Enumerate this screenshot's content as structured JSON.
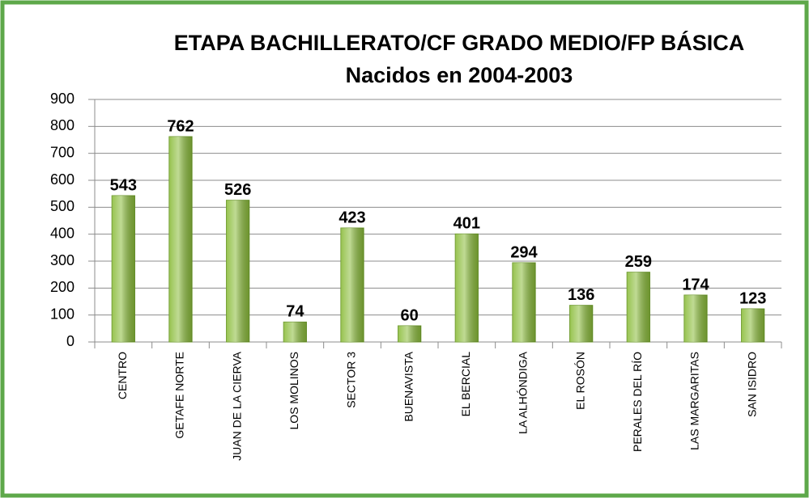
{
  "chart_data": {
    "type": "bar",
    "title": "ETAPA BACHILLERATO/CF GRADO MEDIO/FP BÁSICA",
    "subtitle": "Nacidos en 2004-2003",
    "categories": [
      "CENTRO",
      "GETAFE NORTE",
      "JUAN DE LA CIERVA",
      "LOS MOLINOS",
      "SECTOR 3",
      "BUENAVISTA",
      "EL BERCIAL",
      "LA ALHÓNDIGA",
      "EL ROSÓN",
      "PERALES DEL RÍO",
      "LAS MARGARITAS",
      "SAN ISIDRO"
    ],
    "values": [
      543,
      762,
      526,
      74,
      423,
      60,
      401,
      294,
      136,
      259,
      174,
      123
    ],
    "color": "#8cbd3c",
    "ylim": [
      0,
      900
    ],
    "yticks": [
      0,
      100,
      200,
      300,
      400,
      500,
      600,
      700,
      800,
      900
    ],
    "grid": true
  }
}
